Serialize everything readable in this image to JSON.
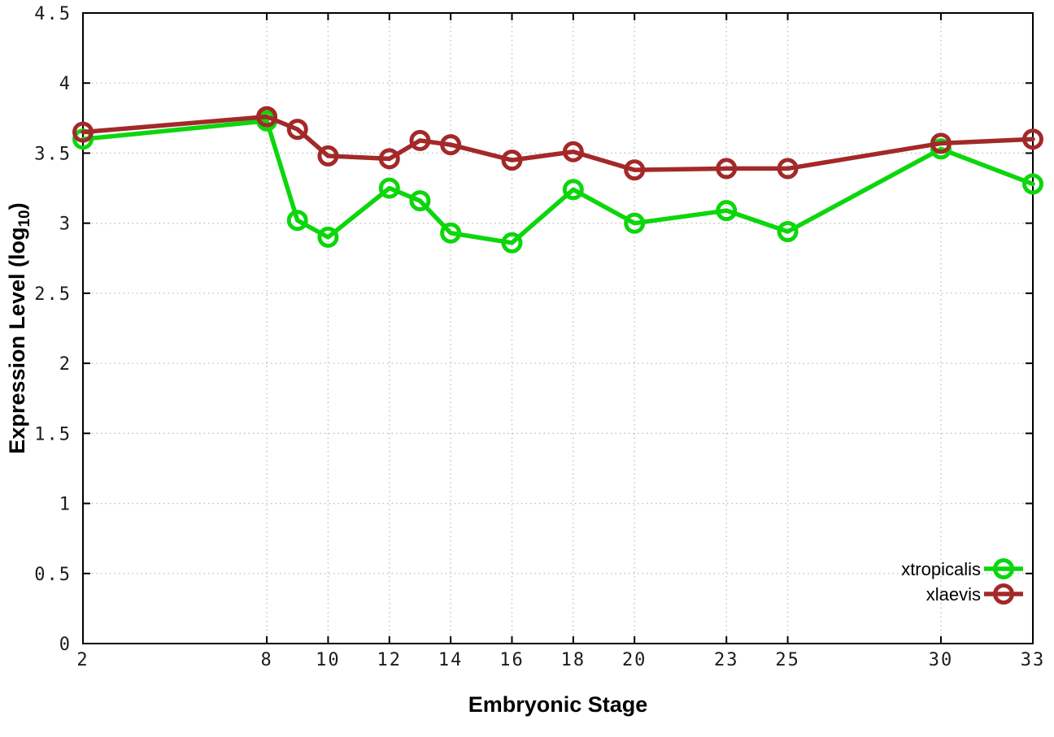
{
  "chart_data": {
    "type": "line",
    "title": "",
    "xlabel": "Embryonic Stage",
    "ylabel": "Expression Level (log10)",
    "ylabel_parts": {
      "main": "Expression Level (log",
      "sub": "10",
      "close": ")"
    },
    "xlim": [
      2,
      33
    ],
    "ylim": [
      0,
      4.5
    ],
    "x_ticks": [
      2,
      8,
      10,
      12,
      14,
      16,
      18,
      20,
      23,
      25,
      30,
      33
    ],
    "x_tick_labels": [
      "2",
      "8",
      "10",
      "12",
      "14",
      "16",
      "18",
      "20",
      "23",
      "25",
      "30",
      "33"
    ],
    "y_ticks": [
      0,
      0.5,
      1,
      1.5,
      2,
      2.5,
      3,
      3.5,
      4,
      4.5
    ],
    "y_tick_labels": [
      "0",
      "0.5",
      "1",
      "1.5",
      "2",
      "2.5",
      "3",
      "3.5",
      "4",
      "4.5"
    ],
    "grid": true,
    "legend_position": "bottom-right",
    "x": [
      2,
      8,
      9,
      10,
      12,
      13,
      14,
      16,
      18,
      20,
      23,
      25,
      30,
      33
    ],
    "series": [
      {
        "name": "xtropicalis",
        "color": "#0cd60c",
        "values": [
          3.6,
          3.73,
          3.02,
          2.9,
          3.25,
          3.16,
          2.93,
          2.86,
          3.24,
          3.0,
          3.09,
          2.94,
          3.53,
          3.28
        ]
      },
      {
        "name": "xlaevis",
        "color": "#a32929",
        "values": [
          3.65,
          3.76,
          3.67,
          3.48,
          3.46,
          3.59,
          3.56,
          3.45,
          3.51,
          3.38,
          3.39,
          3.39,
          3.57,
          3.6
        ]
      }
    ]
  },
  "colors": {
    "axis": "#000000",
    "grid": "#bdbdbd",
    "background": "#ffffff"
  }
}
